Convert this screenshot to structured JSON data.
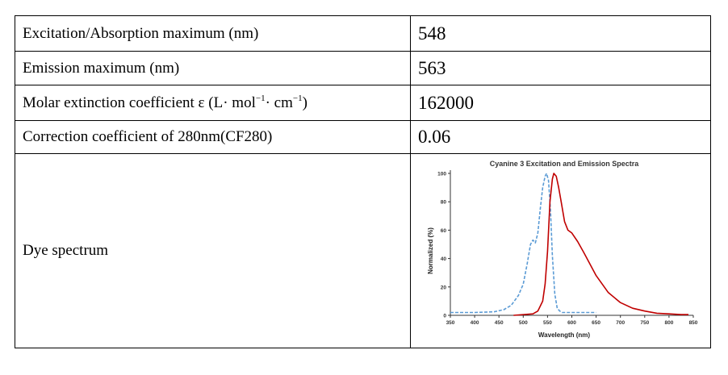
{
  "rows": [
    {
      "label": "Excitation/Absorption maximum (nm)",
      "value": "548"
    },
    {
      "label": "Emission maximum (nm)",
      "value": "563"
    },
    {
      "label_prefix": "Molar extinction coefficient ε (L",
      "label_dot1": "·",
      "label_mol": " mol",
      "label_exp1": "−1",
      "label_dot2": "·",
      "label_cm": " cm",
      "label_exp2": "−1",
      "label_suffix": ")",
      "value": "162000"
    },
    {
      "label": "Correction coefficient of 280nm(CF280)",
      "value": "0.06"
    },
    {
      "label": "Dye spectrum"
    }
  ],
  "chart_data": {
    "type": "line",
    "title": "Cyanine 3 Excitation and Emission Spectra",
    "xlabel": "Wavelength (nm)",
    "ylabel": "Normalized (%)",
    "xlim": [
      350,
      850
    ],
    "ylim": [
      0,
      100
    ],
    "x_ticks": [
      "350",
      "400",
      "450",
      "500",
      "550",
      "600",
      "650",
      "700",
      "750",
      "800",
      "850"
    ],
    "y_ticks": [
      "0",
      "20",
      "40",
      "60",
      "80",
      "100"
    ],
    "grid": false,
    "legend": "none",
    "series": [
      {
        "color": "#5b9bd5",
        "style": "dashed",
        "x": [
          350,
          400,
          440,
          460,
          475,
          490,
          500,
          508,
          515,
          520,
          525,
          530,
          535,
          540,
          545,
          548,
          552,
          556,
          560,
          565,
          570,
          575,
          580,
          590,
          600,
          625,
          650
        ],
        "y": [
          2,
          2,
          2.5,
          4,
          7,
          14,
          22,
          36,
          50,
          53,
          51,
          58,
          75,
          90,
          98,
          100,
          95,
          75,
          42,
          15,
          5,
          3,
          2,
          2,
          2,
          2,
          2
        ]
      },
      {
        "color": "#c00000",
        "style": "solid",
        "x": [
          480,
          520,
          530,
          540,
          545,
          550,
          555,
          560,
          563,
          568,
          573,
          578,
          585,
          592,
          600,
          612,
          625,
          650,
          675,
          700,
          725,
          750,
          775,
          800,
          825,
          840
        ],
        "y": [
          0,
          1,
          3,
          10,
          22,
          45,
          80,
          96,
          100,
          98,
          90,
          80,
          66,
          60,
          58,
          52,
          44,
          28,
          16,
          9,
          5,
          3,
          1.5,
          1,
          0.5,
          0.5
        ]
      }
    ]
  }
}
